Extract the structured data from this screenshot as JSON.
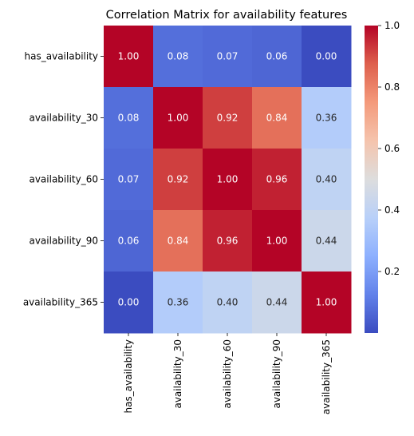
{
  "chart_data": {
    "type": "heatmap",
    "title": "Correlation Matrix for availability features",
    "rows": [
      "has_availability",
      "availability_30",
      "availability_60",
      "availability_90",
      "availability_365"
    ],
    "columns": [
      "has_availability",
      "availability_30",
      "availability_60",
      "availability_90",
      "availability_365"
    ],
    "values": [
      [
        1.0,
        0.08,
        0.07,
        0.06,
        0.0
      ],
      [
        0.08,
        1.0,
        0.92,
        0.84,
        0.36
      ],
      [
        0.07,
        0.92,
        1.0,
        0.96,
        0.4
      ],
      [
        0.06,
        0.84,
        0.96,
        1.0,
        0.44
      ],
      [
        0.0,
        0.36,
        0.4,
        0.44,
        1.0
      ]
    ],
    "annotations": [
      [
        "1.00",
        "0.08",
        "0.07",
        "0.06",
        "0.00"
      ],
      [
        "0.08",
        "1.00",
        "0.92",
        "0.84",
        "0.36"
      ],
      [
        "0.07",
        "0.92",
        "1.00",
        "0.96",
        "0.40"
      ],
      [
        "0.06",
        "0.84",
        "0.96",
        "1.00",
        "0.44"
      ],
      [
        "0.00",
        "0.36",
        "0.40",
        "0.44",
        "1.00"
      ]
    ],
    "colormap": "coolwarm",
    "colorbar": {
      "range": [
        0.0,
        1.0
      ],
      "ticks": [
        0.2,
        0.4,
        0.6,
        0.8,
        1.0
      ],
      "tick_labels": [
        "0.2",
        "0.4",
        "0.6",
        "0.8",
        "1.0"
      ]
    },
    "colors": {
      "low": "#3b4cc0",
      "mid": "#dddddd",
      "high": "#b40426"
    }
  }
}
